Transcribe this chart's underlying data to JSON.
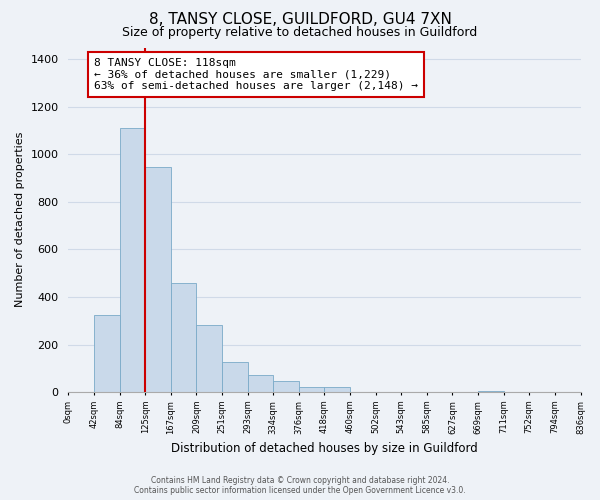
{
  "title": "8, TANSY CLOSE, GUILDFORD, GU4 7XN",
  "subtitle": "Size of property relative to detached houses in Guildford",
  "xlabel": "Distribution of detached houses by size in Guildford",
  "ylabel": "Number of detached properties",
  "bar_values": [
    0,
    325,
    1110,
    945,
    460,
    280,
    125,
    70,
    45,
    20,
    20,
    0,
    0,
    0,
    0,
    0,
    5,
    0,
    0,
    0
  ],
  "bin_labels": [
    "0sqm",
    "42sqm",
    "84sqm",
    "125sqm",
    "167sqm",
    "209sqm",
    "251sqm",
    "293sqm",
    "334sqm",
    "376sqm",
    "418sqm",
    "460sqm",
    "502sqm",
    "543sqm",
    "585sqm",
    "627sqm",
    "669sqm",
    "711sqm",
    "752sqm",
    "794sqm",
    "836sqm"
  ],
  "bar_color": "#c9d9ea",
  "bar_edge_color": "#7aaac8",
  "marker_line_color": "#cc0000",
  "ylim": [
    0,
    1450
  ],
  "yticks": [
    0,
    200,
    400,
    600,
    800,
    1000,
    1200,
    1400
  ],
  "annotation_title": "8 TANSY CLOSE: 118sqm",
  "annotation_line1": "← 36% of detached houses are smaller (1,229)",
  "annotation_line2": "63% of semi-detached houses are larger (2,148) →",
  "annotation_box_color": "#ffffff",
  "annotation_box_edgecolor": "#cc0000",
  "footer_line1": "Contains HM Land Registry data © Crown copyright and database right 2024.",
  "footer_line2": "Contains public sector information licensed under the Open Government Licence v3.0.",
  "background_color": "#eef2f7",
  "grid_color": "#d0dae8"
}
